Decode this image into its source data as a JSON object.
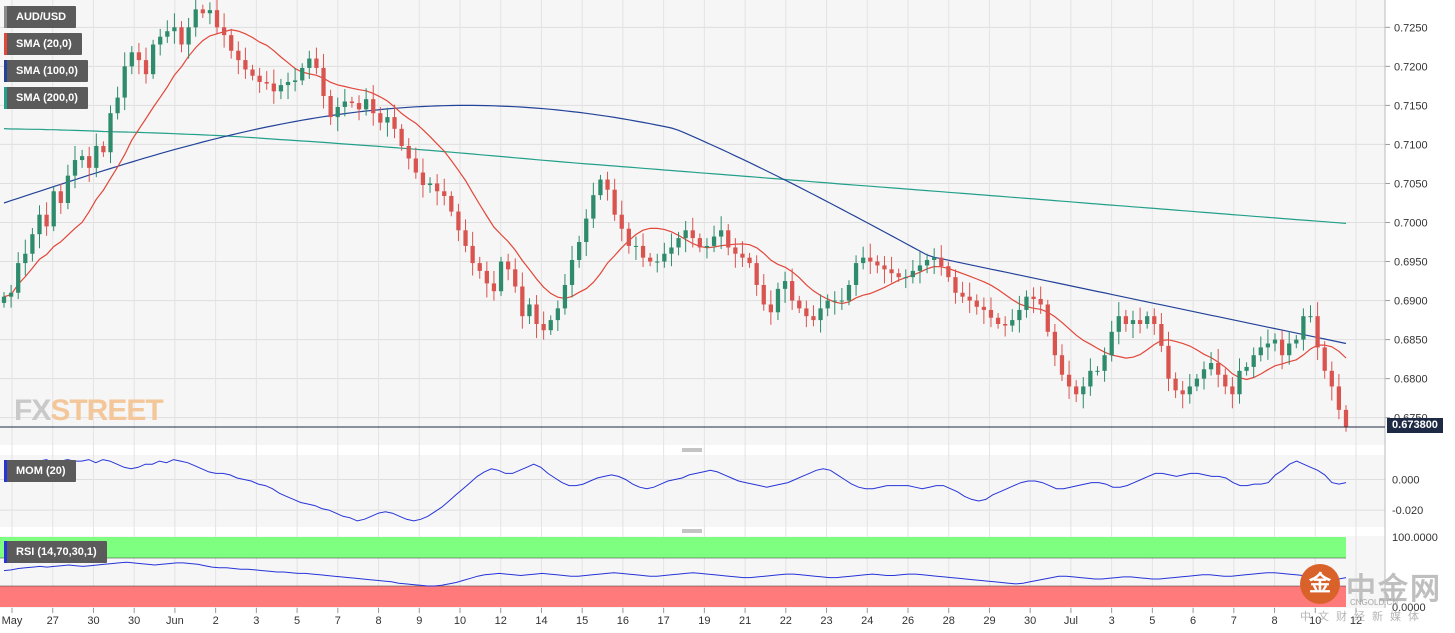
{
  "chart_data": {
    "type": "candlestick",
    "symbol": "AUD/USD",
    "last_price": "0.673800",
    "price_axis": {
      "ylim": [
        0.6715,
        0.7285
      ],
      "ticks": [
        "0.7250",
        "0.7200",
        "0.7150",
        "0.7100",
        "0.7050",
        "0.7000",
        "0.6950",
        "0.6900",
        "0.6850",
        "0.6800",
        "0.6750"
      ]
    },
    "x_ticks": [
      "May",
      "27",
      "30",
      "30",
      "Jun",
      "2",
      "3",
      "5",
      "7",
      "8",
      "9",
      "10",
      "12",
      "14",
      "15",
      "16",
      "17",
      "19",
      "21",
      "22",
      "23",
      "24",
      "26",
      "28",
      "29",
      "30",
      "Jul",
      "3",
      "5",
      "6",
      "7",
      "8",
      "10",
      "12"
    ],
    "legend": [
      "AUD/USD",
      "SMA (20,0)",
      "SMA (100,0)",
      "SMA (200,0)"
    ],
    "colors": {
      "up": "#2e8b6b",
      "down": "#d9534f",
      "sma20": "#e2473a",
      "sma100": "#23439a",
      "sma200": "#23a08a",
      "momentum": "#2634d8",
      "rsi": "#2634d8",
      "rsi_overbought": "#7fff7f",
      "rsi_oversold": "#ff7b7b"
    },
    "candles_close": [
      0.6905,
      0.691,
      0.6948,
      0.696,
      0.6985,
      0.701,
      0.6995,
      0.704,
      0.7025,
      0.706,
      0.708,
      0.7085,
      0.707,
      0.7098,
      0.709,
      0.714,
      0.716,
      0.72,
      0.7218,
      0.7208,
      0.719,
      0.7228,
      0.7238,
      0.7245,
      0.725,
      0.7228,
      0.725,
      0.7273,
      0.7268,
      0.7272,
      0.725,
      0.724,
      0.722,
      0.7208,
      0.7196,
      0.7188,
      0.718,
      0.7178,
      0.7168,
      0.7176,
      0.718,
      0.7182,
      0.7198,
      0.721,
      0.7198,
      0.7162,
      0.7135,
      0.7148,
      0.7155,
      0.7153,
      0.7145,
      0.7158,
      0.714,
      0.7128,
      0.7135,
      0.712,
      0.7098,
      0.7082,
      0.7064,
      0.7048,
      0.705,
      0.704,
      0.7034,
      0.7014,
      0.699,
      0.697,
      0.6948,
      0.6938,
      0.6922,
      0.6912,
      0.695,
      0.694,
      0.6918,
      0.688,
      0.6895,
      0.687,
      0.6862,
      0.6875,
      0.689,
      0.692,
      0.6952,
      0.6975,
      0.7005,
      0.7035,
      0.7055,
      0.7042,
      0.701,
      0.6992,
      0.697,
      0.697,
      0.6955,
      0.695,
      0.695,
      0.696,
      0.6968,
      0.698,
      0.699,
      0.698,
      0.6968,
      0.697,
      0.6982,
      0.699,
      0.6968,
      0.696,
      0.6955,
      0.6948,
      0.692,
      0.6895,
      0.6885,
      0.6915,
      0.6925,
      0.69,
      0.689,
      0.688,
      0.6875,
      0.689,
      0.69,
      0.69,
      0.69,
      0.692,
      0.6948,
      0.6955,
      0.695,
      0.6945,
      0.694,
      0.6935,
      0.693,
      0.693,
      0.6938,
      0.6945,
      0.6952,
      0.6955,
      0.6944,
      0.693,
      0.691,
      0.6905,
      0.69,
      0.6892,
      0.6888,
      0.6878,
      0.687,
      0.6868,
      0.6875,
      0.6888,
      0.6905,
      0.6902,
      0.6895,
      0.686,
      0.683,
      0.6805,
      0.679,
      0.678,
      0.679,
      0.681,
      0.681,
      0.683,
      0.686,
      0.688,
      0.687,
      0.6875,
      0.687,
      0.688,
      0.687,
      0.6842,
      0.68,
      0.6785,
      0.678,
      0.679,
      0.68,
      0.6812,
      0.682,
      0.6805,
      0.679,
      0.678,
      0.681,
      0.6815,
      0.683,
      0.684,
      0.6845,
      0.685,
      0.683,
      0.6845,
      0.685,
      0.688,
      0.688,
      0.684,
      0.681,
      0.679,
      0.676,
      0.6738
    ]
  },
  "indicators": {
    "momentum": {
      "label": "MOM (20)",
      "ticks": [
        "0.000",
        "-0.020"
      ],
      "ylim": [
        -0.031,
        0.016
      ],
      "values": [
        0.0,
        0.001,
        0.004,
        0.008,
        0.01,
        0.012,
        0.013,
        0.011,
        0.012,
        0.013,
        0.012,
        0.012,
        0.013,
        0.011,
        0.013,
        0.012,
        0.01,
        0.008,
        0.007,
        0.008,
        0.01,
        0.01,
        0.012,
        0.011,
        0.013,
        0.012,
        0.011,
        0.009,
        0.007,
        0.005,
        0.004,
        0.004,
        0.003,
        0.001,
        0.0,
        -0.001,
        -0.003,
        -0.004,
        -0.006,
        -0.009,
        -0.011,
        -0.013,
        -0.015,
        -0.016,
        -0.017,
        -0.019,
        -0.02,
        -0.022,
        -0.024,
        -0.025,
        -0.027,
        -0.026,
        -0.024,
        -0.022,
        -0.021,
        -0.022,
        -0.024,
        -0.026,
        -0.027,
        -0.026,
        -0.024,
        -0.021,
        -0.018,
        -0.014,
        -0.01,
        -0.006,
        -0.002,
        0.002,
        0.005,
        0.007,
        0.006,
        0.004,
        0.004,
        0.006,
        0.008,
        0.01,
        0.008,
        0.004,
        0.001,
        -0.002,
        -0.004,
        -0.004,
        -0.003,
        -0.001,
        0.001,
        0.002,
        0.003,
        0.002,
        0.0,
        -0.003,
        -0.005,
        -0.006,
        -0.005,
        -0.003,
        -0.001,
        0.0,
        0.001,
        0.003,
        0.004,
        0.005,
        0.006,
        0.005,
        0.003,
        0.001,
        -0.001,
        -0.002,
        -0.003,
        -0.004,
        -0.005,
        -0.004,
        -0.003,
        -0.002,
        0.0,
        0.002,
        0.004,
        0.006,
        0.007,
        0.006,
        0.003,
        0.0,
        -0.003,
        -0.005,
        -0.006,
        -0.006,
        -0.005,
        -0.004,
        -0.004,
        -0.004,
        -0.004,
        -0.005,
        -0.006,
        -0.005,
        -0.004,
        -0.004,
        -0.006,
        -0.008,
        -0.011,
        -0.013,
        -0.014,
        -0.013,
        -0.01,
        -0.008,
        -0.006,
        -0.004,
        -0.002,
        -0.001,
        -0.001,
        -0.002,
        -0.004,
        -0.006,
        -0.006,
        -0.005,
        -0.004,
        -0.003,
        -0.002,
        -0.002,
        -0.003,
        -0.005,
        -0.005,
        -0.004,
        -0.002,
        0.0,
        0.002,
        0.004,
        0.004,
        0.003,
        0.002,
        0.003,
        0.004,
        0.004,
        0.003,
        0.002,
        0.002,
        0.001,
        -0.002,
        -0.004,
        -0.004,
        -0.003,
        -0.003,
        -0.002,
        0.003,
        0.006,
        0.01,
        0.012,
        0.01,
        0.008,
        0.006,
        0.003,
        -0.002,
        -0.003,
        -0.002
      ]
    },
    "rsi": {
      "label": "RSI (14,70,30,1)",
      "ticks": [
        "100.0000",
        "0.0000"
      ],
      "ylim": [
        0,
        100
      ],
      "overbought": 70,
      "oversold": 30,
      "values": [
        52,
        53,
        55,
        56,
        57,
        58,
        57,
        58,
        59,
        60,
        59,
        58,
        59,
        60,
        61,
        62,
        63,
        64,
        63,
        62,
        61,
        60,
        61,
        62,
        63,
        63,
        62,
        61,
        59,
        57,
        56,
        56,
        55,
        54,
        54,
        53,
        52,
        51,
        50,
        50,
        49,
        48,
        48,
        47,
        46,
        45,
        44,
        43,
        42,
        41,
        40,
        39,
        38,
        37,
        36,
        34,
        33,
        32,
        31,
        30,
        30,
        31,
        33,
        35,
        38,
        41,
        44,
        46,
        47,
        48,
        47,
        46,
        45,
        46,
        47,
        48,
        47,
        46,
        45,
        44,
        44,
        45,
        46,
        47,
        48,
        49,
        48,
        47,
        46,
        45,
        44,
        44,
        45,
        46,
        47,
        48,
        49,
        48,
        47,
        46,
        45,
        44,
        43,
        42,
        42,
        43,
        44,
        45,
        46,
        47,
        47,
        46,
        45,
        44,
        43,
        42,
        42,
        43,
        44,
        45,
        46,
        47,
        46,
        45,
        45,
        46,
        47,
        47,
        46,
        45,
        44,
        43,
        42,
        41,
        40,
        39,
        38,
        37,
        36,
        35,
        34,
        33,
        34,
        36,
        38,
        40,
        42,
        44,
        44,
        43,
        42,
        41,
        40,
        40,
        41,
        42,
        43,
        43,
        42,
        41,
        40,
        40,
        41,
        42,
        43,
        44,
        45,
        46,
        46,
        45,
        44,
        44,
        45,
        46,
        47,
        48,
        49,
        49,
        48,
        47,
        46,
        45,
        44,
        43,
        42,
        41,
        40,
        42
      ]
    }
  },
  "watermark": {
    "fx": "FX",
    "street": "STREET"
  },
  "logo": {
    "mark": "金",
    "title": "中金网",
    "url": "CNGOLD.CN",
    "subtitle": "中文财经新媒体"
  }
}
